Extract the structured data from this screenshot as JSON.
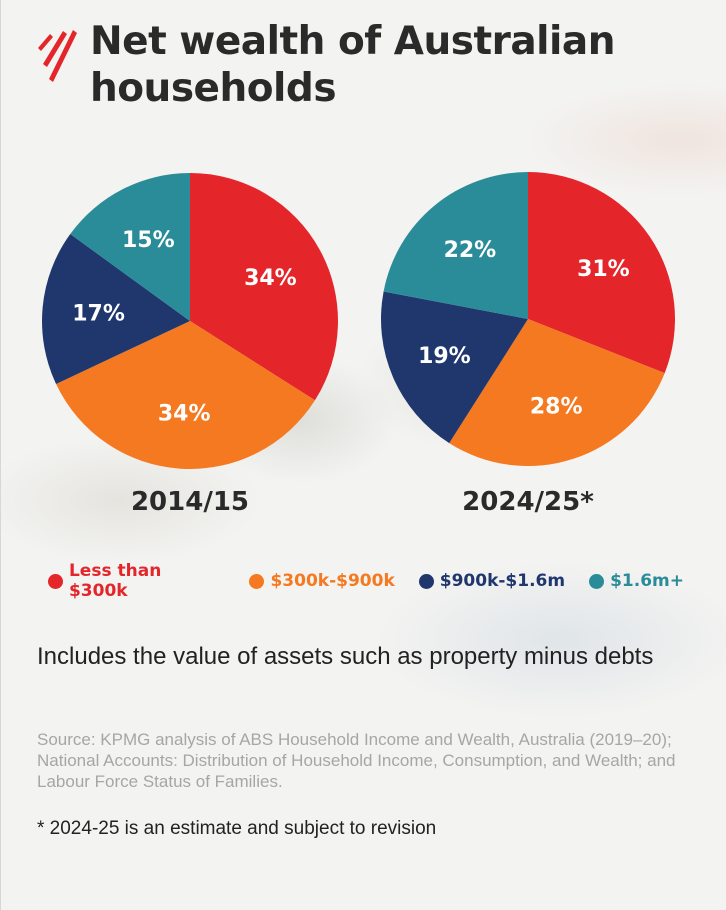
{
  "header": {
    "title": "Net wealth of Australian households",
    "logo_icon": "sbs-logo-icon",
    "logo_color": "#e4262b"
  },
  "chart_data": {
    "type": "pie",
    "categories": [
      "Less than $300k",
      "$300k-$900k",
      "$900k-$1.6m",
      "$1.6m+"
    ],
    "colors": [
      "#e4262b",
      "#f47920",
      "#20376e",
      "#2b8c99"
    ],
    "series": [
      {
        "name": "2014/15",
        "values": [
          34,
          34,
          17,
          15
        ],
        "labels": [
          "34%",
          "34%",
          "17%",
          "15%"
        ]
      },
      {
        "name": "2024/25*",
        "values": [
          31,
          28,
          19,
          22
        ],
        "labels": [
          "31%",
          "28%",
          "19%",
          "22%"
        ]
      }
    ],
    "legend_position": "bottom"
  },
  "legend": [
    {
      "label": "Less than $300k",
      "color": "#e4262b"
    },
    {
      "label": "$300k-$900k",
      "color": "#f47920"
    },
    {
      "label": "$900k-$1.6m",
      "color": "#20376e"
    },
    {
      "label": "$1.6m+",
      "color": "#2b8c99"
    }
  ],
  "notes": {
    "description": "Includes the value of assets such as property minus debts",
    "source": "Source: KPMG analysis of ABS Household Income and Wealth, Australia (2019–20); National Accounts: Distribution of Household Income, Consumption, and Wealth; and Labour Force Status of Families.",
    "footnote": "* 2024-25 is an estimate and subject to revision"
  }
}
